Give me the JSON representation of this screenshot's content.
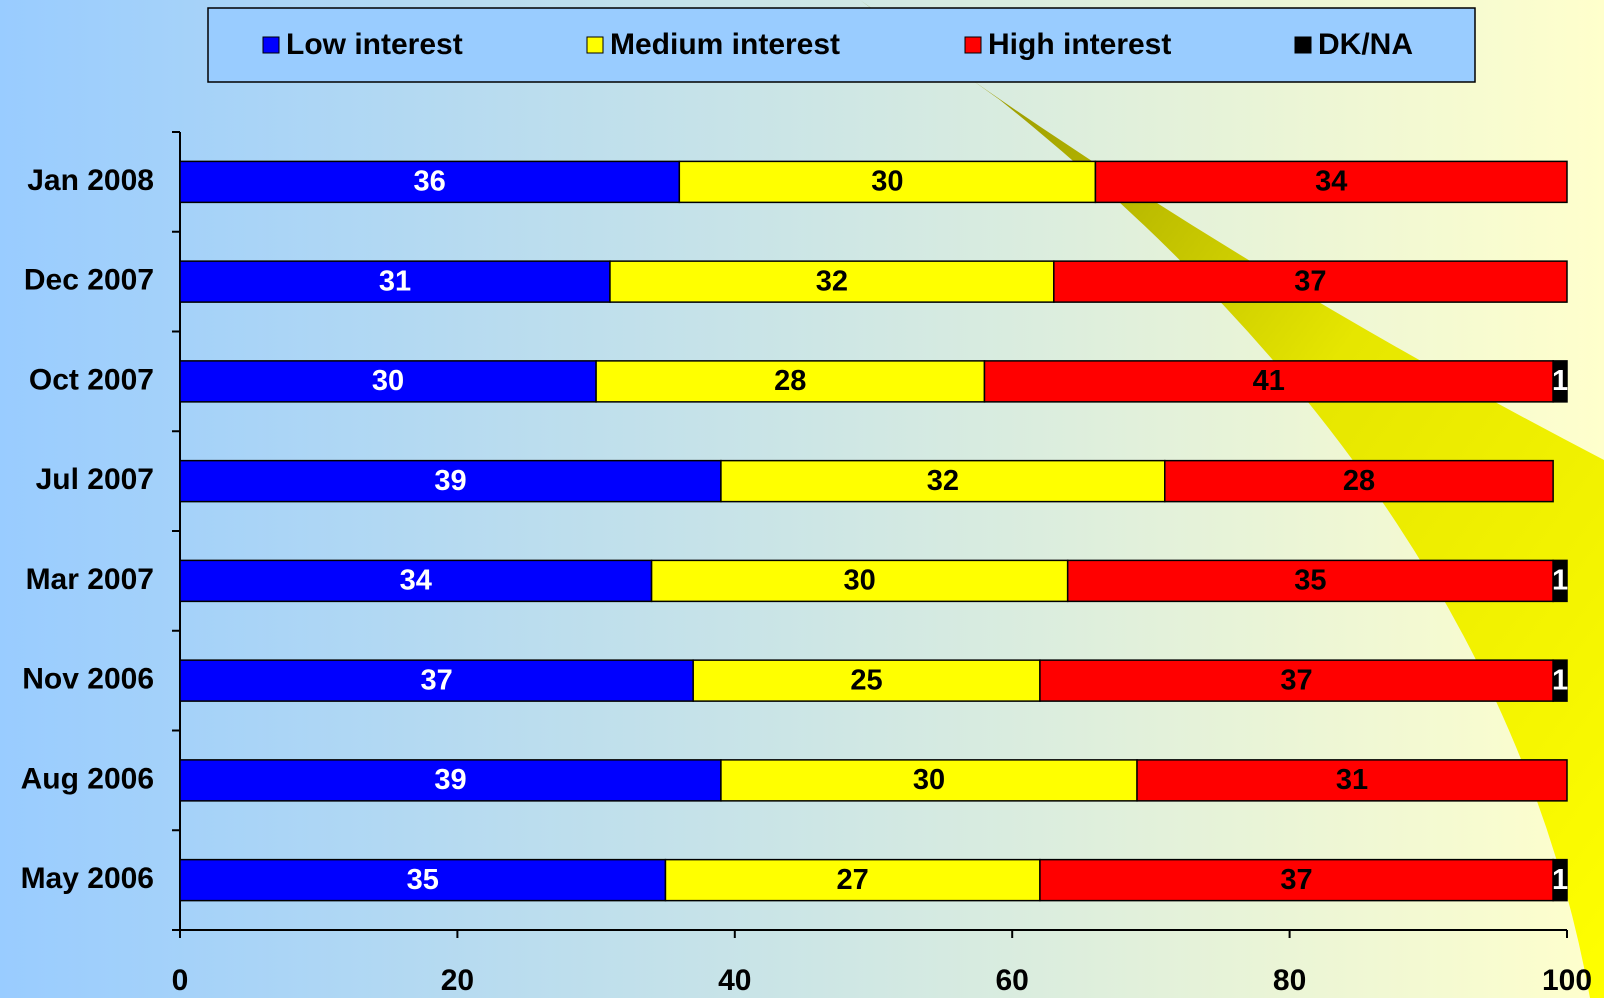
{
  "chart_data": {
    "type": "stacked-bar-horizontal",
    "categories": [
      "Jan 2008",
      "Dec 2007",
      "Oct 2007",
      "Jul 2007",
      "Mar 2007",
      "Nov 2006",
      "Aug 2006",
      "May 2006"
    ],
    "series": [
      {
        "name": "Low interest",
        "color": "#0000ff",
        "label_color": "#ffffff",
        "values": [
          36,
          31,
          30,
          39,
          34,
          37,
          39,
          35
        ]
      },
      {
        "name": "Medium interest",
        "color": "#ffff00",
        "label_color": "#000000",
        "values": [
          30,
          32,
          28,
          32,
          30,
          25,
          30,
          27
        ]
      },
      {
        "name": "High interest",
        "color": "#ff0000",
        "label_color": "#000000",
        "values": [
          34,
          37,
          41,
          28,
          35,
          37,
          31,
          37
        ]
      },
      {
        "name": "DK/NA",
        "color": "#000000",
        "label_color": "#ffffff",
        "values": [
          null,
          null,
          1,
          null,
          1,
          1,
          null,
          1
        ]
      }
    ],
    "xlim": [
      0,
      100
    ],
    "xticks": [
      0,
      20,
      40,
      60,
      80,
      100
    ],
    "legend": "top"
  }
}
